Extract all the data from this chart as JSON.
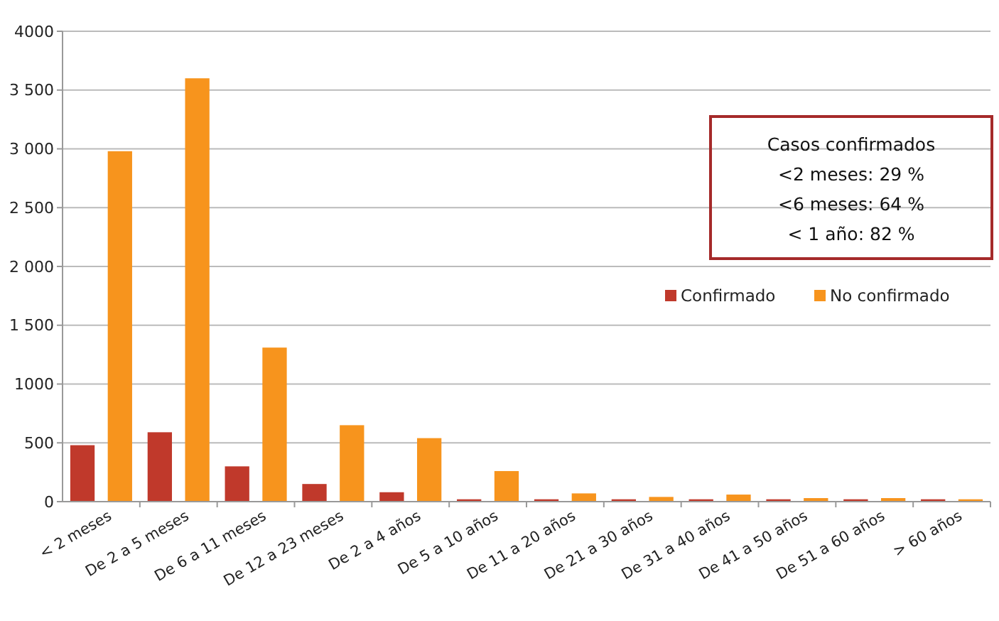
{
  "chart_data": {
    "type": "bar",
    "categories": [
      "< 2 meses",
      "De 2 a 5 meses",
      "De 6 a 11 meses",
      "De 12 a 23 meses",
      "De 2 a 4 años",
      "De 5 a 10 años",
      "De 11 a 20 años",
      "De 21 a 30 años",
      "De 31 a 40 años",
      "De 41 a 50 años",
      "De 51 a 60 años",
      "> 60 años"
    ],
    "series": [
      {
        "name": "Confirmado",
        "color": "#c0392b",
        "values": [
          480,
          590,
          300,
          150,
          80,
          20,
          20,
          20,
          20,
          20,
          20,
          20
        ]
      },
      {
        "name": "No confirmado",
        "color": "#f7941d",
        "values": [
          2980,
          3600,
          1310,
          650,
          540,
          260,
          70,
          40,
          60,
          30,
          30,
          20
        ]
      }
    ],
    "ylim": [
      0,
      4000
    ],
    "yticks": [
      0,
      500,
      {
        "value": 1000,
        "label": "1000"
      },
      {
        "value": 1500,
        "label": "1 500"
      },
      {
        "value": 2000,
        "label": "2 000"
      },
      {
        "value": 2500,
        "label": "2 500"
      },
      {
        "value": 3000,
        "label": "3 000"
      },
      {
        "value": 3500,
        "label": "3 500"
      },
      4000
    ],
    "grid": "y",
    "legend": "right",
    "annotations": [
      "Casos confirmados\n<2 meses: 29 %\n<6 meses: 64 %\n< 1 año: 82 %"
    ]
  }
}
